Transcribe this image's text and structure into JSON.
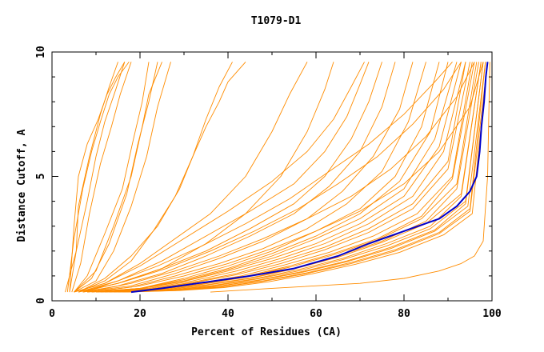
{
  "chart_data": {
    "type": "line",
    "title": "T1079-D1",
    "xlabel": "Percent of Residues (CA)",
    "ylabel": "Distance Cutoff, A",
    "xlim": [
      0,
      100
    ],
    "ylim": [
      0,
      10
    ],
    "x_ticks": [
      0,
      20,
      40,
      60,
      80,
      100
    ],
    "y_ticks": [
      0,
      5,
      10
    ],
    "grid": false,
    "series_colors": {
      "highlight": "#0000cc",
      "others": "#ff8c00"
    },
    "highlight": {
      "x": [
        18,
        25,
        35,
        45,
        55,
        65,
        72,
        80,
        88,
        92,
        95,
        96.5,
        97.2,
        97.6,
        98.2,
        98.6,
        99
      ],
      "y": [
        0.35,
        0.5,
        0.75,
        1.0,
        1.3,
        1.8,
        2.3,
        2.8,
        3.3,
        3.8,
        4.4,
        5.0,
        6.0,
        7.0,
        8.0,
        9.0,
        9.6
      ]
    },
    "series": [
      {
        "x": [
          3.5,
          5,
          7,
          9,
          11,
          13,
          15,
          17.5
        ],
        "y": [
          0.35,
          2.5,
          4.5,
          6,
          7.2,
          8.3,
          9.0,
          9.6
        ]
      },
      {
        "x": [
          4,
          5.5,
          8,
          10,
          12,
          14.5,
          16.5
        ],
        "y": [
          0.35,
          2.0,
          4.0,
          5.8,
          7.2,
          8.5,
          9.6
        ]
      },
      {
        "x": [
          4.5,
          6.5,
          8.5,
          11,
          13.5,
          15.5,
          18
        ],
        "y": [
          0.35,
          1.5,
          3.5,
          5.5,
          7.0,
          8.3,
          9.6
        ]
      },
      {
        "x": [
          4,
          5,
          6,
          8,
          10.5,
          12.5,
          14.5,
          16.5
        ],
        "y": [
          0.35,
          3.0,
          5.0,
          6.3,
          7.3,
          8.3,
          9.0,
          9.6
        ]
      },
      {
        "x": [
          3,
          5.5,
          6,
          8.5,
          11,
          13,
          15
        ],
        "y": [
          0.35,
          2.0,
          3.8,
          5.8,
          7.5,
          8.6,
          9.6
        ]
      },
      {
        "x": [
          5,
          8,
          12,
          16,
          18.5,
          20.5,
          22
        ],
        "y": [
          0.35,
          1.0,
          2.7,
          4.5,
          6.5,
          8.0,
          9.6
        ]
      },
      {
        "x": [
          5,
          9,
          13,
          17,
          19.5,
          22,
          24
        ],
        "y": [
          0.35,
          0.9,
          2.3,
          4.3,
          6.3,
          8.0,
          9.6
        ]
      },
      {
        "x": [
          5,
          10,
          14,
          18,
          21.5,
          24,
          27
        ],
        "y": [
          0.35,
          0.8,
          2.0,
          3.8,
          5.8,
          7.8,
          9.6
        ]
      },
      {
        "x": [
          5,
          10,
          14,
          18,
          20.5,
          22,
          25
        ],
        "y": [
          0.35,
          1.2,
          3.0,
          5.0,
          7.0,
          8.3,
          9.6
        ]
      },
      {
        "x": [
          6,
          12,
          18,
          24,
          29,
          32,
          35,
          38,
          40,
          44
        ],
        "y": [
          0.35,
          0.9,
          1.8,
          3.0,
          4.5,
          5.8,
          7.0,
          8.0,
          8.8,
          9.6
        ]
      },
      {
        "x": [
          6,
          12,
          18,
          23,
          28,
          32,
          35,
          38,
          41
        ],
        "y": [
          0.35,
          0.8,
          1.6,
          2.8,
          4.2,
          5.8,
          7.3,
          8.6,
          9.6
        ]
      },
      {
        "x": [
          5,
          12,
          20,
          28,
          36,
          44,
          50,
          54,
          58
        ],
        "y": [
          0.35,
          0.7,
          1.5,
          2.5,
          3.5,
          5.0,
          6.8,
          8.3,
          9.6
        ]
      },
      {
        "x": [
          6,
          15,
          25,
          35,
          44,
          52,
          58,
          62,
          64
        ],
        "y": [
          0.35,
          0.7,
          1.3,
          2.3,
          3.5,
          5.0,
          6.8,
          8.5,
          9.6
        ]
      },
      {
        "x": [
          5,
          12,
          20,
          30,
          40,
          50,
          58,
          64,
          68,
          71
        ],
        "y": [
          0.35,
          0.7,
          1.4,
          2.5,
          3.6,
          4.8,
          6.0,
          7.3,
          8.6,
          9.6
        ]
      },
      {
        "x": [
          6,
          15,
          25,
          35,
          45,
          55,
          62,
          67,
          70,
          72
        ],
        "y": [
          0.35,
          0.8,
          1.6,
          2.6,
          3.6,
          4.7,
          6.0,
          7.4,
          8.7,
          9.6
        ]
      },
      {
        "x": [
          6,
          15,
          25,
          35,
          45,
          55,
          62,
          68,
          72,
          75
        ],
        "y": [
          0.35,
          0.7,
          1.3,
          2.0,
          2.9,
          3.9,
          5.0,
          6.5,
          8.0,
          9.6
        ]
      },
      {
        "x": [
          7,
          15,
          25,
          35,
          45,
          55,
          63,
          70,
          75,
          78
        ],
        "y": [
          0.35,
          0.6,
          1.1,
          1.8,
          2.6,
          3.5,
          4.6,
          6.0,
          7.8,
          9.6
        ]
      },
      {
        "x": [
          7,
          18,
          28,
          38,
          48,
          58,
          66,
          73,
          79,
          82
        ],
        "y": [
          0.35,
          0.6,
          1.1,
          1.7,
          2.4,
          3.3,
          4.4,
          5.8,
          7.7,
          9.6
        ]
      },
      {
        "x": [
          8,
          18,
          28,
          38,
          48,
          58,
          67,
          75,
          81,
          85
        ],
        "y": [
          0.35,
          0.55,
          1.0,
          1.5,
          2.1,
          2.9,
          3.9,
          5.2,
          7.2,
          9.6
        ]
      },
      {
        "x": [
          8,
          20,
          30,
          40,
          50,
          60,
          70,
          78,
          84,
          88
        ],
        "y": [
          0.35,
          0.5,
          0.9,
          1.4,
          2.0,
          2.8,
          3.7,
          5.0,
          7.0,
          9.6
        ]
      },
      {
        "x": [
          9,
          20,
          30,
          40,
          50,
          60,
          70,
          79,
          86,
          90
        ],
        "y": [
          0.35,
          0.5,
          0.85,
          1.3,
          1.9,
          2.6,
          3.5,
          4.8,
          6.8,
          9.6
        ]
      },
      {
        "x": [
          9,
          20,
          30,
          40,
          50,
          60,
          70,
          80,
          87,
          92
        ],
        "y": [
          0.35,
          0.5,
          0.8,
          1.25,
          1.8,
          2.5,
          3.3,
          4.5,
          6.5,
          9.6
        ]
      },
      {
        "x": [
          10,
          20,
          30,
          40,
          50,
          60,
          70,
          80,
          88,
          93
        ],
        "y": [
          0.35,
          0.48,
          0.78,
          1.2,
          1.7,
          2.3,
          3.1,
          4.2,
          6.2,
          9.6
        ]
      },
      {
        "x": [
          10,
          22,
          32,
          42,
          52,
          62,
          72,
          82,
          89,
          94
        ],
        "y": [
          0.35,
          0.5,
          0.8,
          1.2,
          1.7,
          2.3,
          3.1,
          4.2,
          6.0,
          9.6
        ]
      },
      {
        "x": [
          10,
          22,
          32,
          42,
          52,
          62,
          72,
          82,
          90,
          94
        ],
        "y": [
          0.35,
          0.47,
          0.75,
          1.1,
          1.6,
          2.15,
          2.9,
          3.9,
          5.6,
          9.6
        ]
      },
      {
        "x": [
          11,
          22,
          32,
          42,
          52,
          62,
          72,
          82,
          90,
          95
        ],
        "y": [
          0.35,
          0.47,
          0.72,
          1.05,
          1.5,
          2.05,
          2.75,
          3.7,
          5.3,
          9.6
        ]
      },
      {
        "x": [
          11,
          23,
          33,
          43,
          53,
          63,
          73,
          83,
          91,
          95.5
        ],
        "y": [
          0.35,
          0.45,
          0.7,
          1.0,
          1.45,
          1.95,
          2.6,
          3.5,
          5.0,
          9.6
        ]
      },
      {
        "x": [
          12,
          24,
          34,
          44,
          54,
          64,
          74,
          84,
          91,
          96
        ],
        "y": [
          0.35,
          0.45,
          0.68,
          0.98,
          1.4,
          1.9,
          2.5,
          3.4,
          4.9,
          9.6
        ]
      },
      {
        "x": [
          12,
          24,
          34,
          44,
          54,
          64,
          74,
          84,
          92,
          96.5
        ],
        "y": [
          0.35,
          0.45,
          0.66,
          0.95,
          1.35,
          1.85,
          2.45,
          3.3,
          4.7,
          9.6
        ]
      },
      {
        "x": [
          13,
          25,
          35,
          45,
          55,
          65,
          75,
          85,
          92,
          97
        ],
        "y": [
          0.35,
          0.44,
          0.64,
          0.92,
          1.3,
          1.8,
          2.4,
          3.2,
          4.5,
          9.6
        ]
      },
      {
        "x": [
          13,
          25,
          35,
          45,
          55,
          65,
          75,
          85,
          93,
          97.5
        ],
        "y": [
          0.35,
          0.44,
          0.62,
          0.9,
          1.28,
          1.75,
          2.35,
          3.1,
          4.3,
          9.6
        ]
      },
      {
        "x": [
          14,
          26,
          36,
          46,
          56,
          66,
          76,
          86,
          93,
          97.5
        ],
        "y": [
          0.35,
          0.43,
          0.6,
          0.88,
          1.25,
          1.7,
          2.3,
          3.0,
          4.2,
          9.6
        ]
      },
      {
        "x": [
          14,
          26,
          36,
          46,
          56,
          66,
          76,
          86,
          94,
          98
        ],
        "y": [
          0.35,
          0.43,
          0.58,
          0.86,
          1.2,
          1.65,
          2.2,
          2.9,
          4.0,
          9.6
        ]
      },
      {
        "x": [
          15,
          27,
          37,
          47,
          57,
          67,
          77,
          87,
          94,
          98
        ],
        "y": [
          0.35,
          0.42,
          0.57,
          0.84,
          1.18,
          1.6,
          2.15,
          2.85,
          3.9,
          9.6
        ]
      },
      {
        "x": [
          15,
          27,
          37,
          47,
          57,
          67,
          77,
          87,
          94.5,
          98.5
        ],
        "y": [
          0.35,
          0.42,
          0.56,
          0.82,
          1.15,
          1.57,
          2.1,
          2.8,
          3.8,
          9.6
        ]
      },
      {
        "x": [
          16,
          28,
          38,
          48,
          58,
          68,
          78,
          88,
          95,
          98.5
        ],
        "y": [
          0.35,
          0.42,
          0.55,
          0.8,
          1.13,
          1.54,
          2.05,
          2.75,
          3.7,
          9.6
        ]
      },
      {
        "x": [
          16,
          28,
          38,
          48,
          58,
          68,
          78,
          88,
          95,
          99
        ],
        "y": [
          0.35,
          0.41,
          0.54,
          0.78,
          1.1,
          1.5,
          2.0,
          2.7,
          3.6,
          9.6
        ]
      },
      {
        "x": [
          17,
          29,
          39,
          49,
          59,
          69,
          79,
          89,
          95.5,
          99
        ],
        "y": [
          0.35,
          0.41,
          0.53,
          0.76,
          1.08,
          1.47,
          1.95,
          2.65,
          3.5,
          9.6
        ]
      },
      {
        "x": [
          9,
          20,
          30,
          40,
          50,
          60,
          70,
          80,
          88,
          95,
          98
        ],
        "y": [
          0.35,
          0.6,
          1.0,
          1.5,
          2.1,
          2.8,
          3.6,
          4.7,
          6.0,
          7.8,
          9.6
        ]
      },
      {
        "x": [
          8,
          18,
          28,
          38,
          48,
          58,
          68,
          77,
          85,
          92,
          96
        ],
        "y": [
          0.35,
          0.7,
          1.2,
          1.8,
          2.5,
          3.3,
          4.2,
          5.3,
          6.6,
          8.2,
          9.6
        ]
      },
      {
        "x": [
          7,
          16,
          26,
          36,
          46,
          56,
          65,
          74,
          82,
          89,
          93
        ],
        "y": [
          0.35,
          0.75,
          1.3,
          2.0,
          2.8,
          3.7,
          4.7,
          5.8,
          7.1,
          8.5,
          9.6
        ]
      },
      {
        "x": [
          7,
          15,
          24,
          34,
          44,
          54,
          63,
          72,
          80,
          87,
          91
        ],
        "y": [
          0.35,
          0.8,
          1.4,
          2.2,
          3.1,
          4.1,
          5.2,
          6.3,
          7.5,
          8.8,
          9.6
        ]
      },
      {
        "x": [
          36,
          50,
          70,
          80,
          88,
          93,
          96,
          98,
          99,
          99.5
        ],
        "y": [
          0.35,
          0.5,
          0.7,
          0.9,
          1.2,
          1.5,
          1.8,
          2.4,
          5.0,
          9.6
        ]
      }
    ]
  }
}
